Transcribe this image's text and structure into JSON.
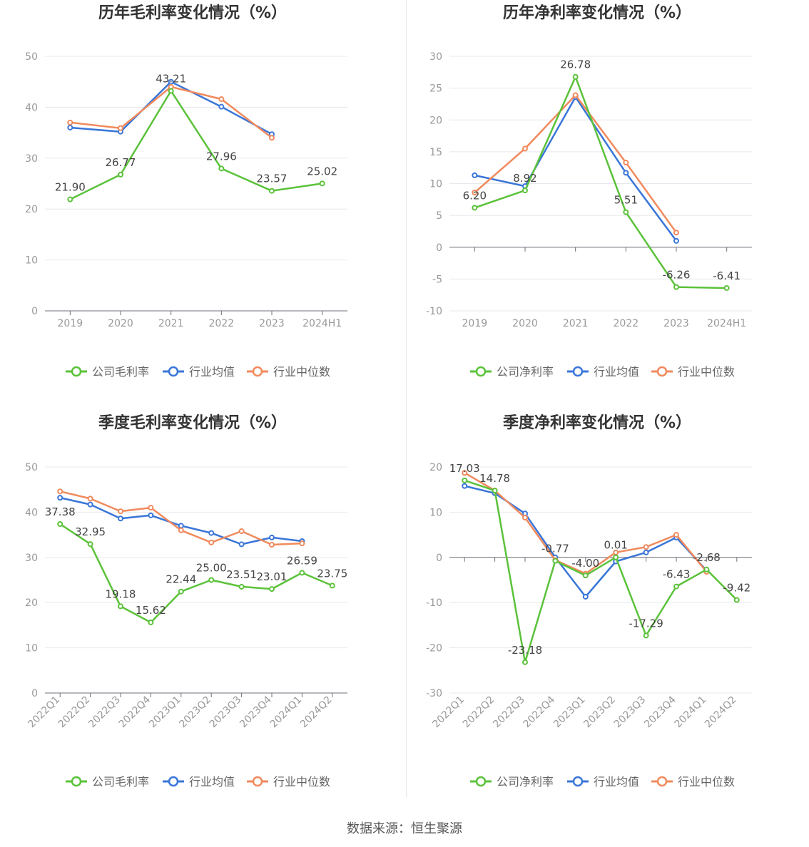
{
  "colors": {
    "company": "#5bc23a",
    "industry_avg": "#3a76d8",
    "industry_median": "#f08a5d",
    "grid": "#e6e8ee",
    "axis": "#6e7079",
    "tick_text": "#999999",
    "title": "#333333",
    "label": "#444444"
  },
  "legend_series": {
    "industry_avg": "行业均值",
    "industry_median": "行业中位数"
  },
  "source": "数据来源：恒生聚源",
  "chart_data": [
    {
      "type": "line",
      "title": "历年毛利率变化情况（%）",
      "categories": [
        "2019",
        "2020",
        "2021",
        "2022",
        "2023",
        "2024H1"
      ],
      "ylim": [
        0,
        50
      ],
      "yticks": [
        0,
        10,
        20,
        30,
        40,
        50
      ],
      "rotate_x_labels": false,
      "series": [
        {
          "key": "company",
          "name": "公司毛利率",
          "values": [
            21.9,
            26.77,
            43.21,
            27.96,
            23.57,
            25.02
          ],
          "labels": [
            "21.90",
            "26.77",
            "43.21",
            "27.96",
            "23.57",
            "25.02"
          ]
        },
        {
          "key": "industry_avg",
          "name": "行业均值",
          "values": [
            36.0,
            35.2,
            45.0,
            40.1,
            34.7,
            null
          ]
        },
        {
          "key": "industry_median",
          "name": "行业中位数",
          "values": [
            37.0,
            35.9,
            44.0,
            41.6,
            34.0,
            null
          ]
        }
      ]
    },
    {
      "type": "line",
      "title": "历年净利率变化情况（%）",
      "categories": [
        "2019",
        "2020",
        "2021",
        "2022",
        "2023",
        "2024H1"
      ],
      "ylim": [
        -10,
        30
      ],
      "yticks": [
        -10,
        -5,
        0,
        5,
        10,
        15,
        20,
        25,
        30
      ],
      "rotate_x_labels": false,
      "series": [
        {
          "key": "company",
          "name": "公司净利率",
          "values": [
            6.2,
            8.92,
            26.78,
            5.51,
            -6.26,
            -6.41
          ],
          "labels": [
            "6.20",
            "8.92",
            "26.78",
            "5.51",
            "-6.26",
            "-6.41"
          ]
        },
        {
          "key": "industry_avg",
          "name": "行业均值",
          "values": [
            11.3,
            9.6,
            23.6,
            11.7,
            1.0,
            null
          ]
        },
        {
          "key": "industry_median",
          "name": "行业中位数",
          "values": [
            8.6,
            15.5,
            23.9,
            13.3,
            2.3,
            null
          ]
        }
      ]
    },
    {
      "type": "line",
      "title": "季度毛利率变化情况（%）",
      "categories": [
        "2022Q1",
        "2022Q2",
        "2022Q3",
        "2022Q4",
        "2023Q1",
        "2023Q2",
        "2023Q3",
        "2023Q4",
        "2024Q1",
        "2024Q2"
      ],
      "ylim": [
        0,
        50
      ],
      "yticks": [
        0,
        10,
        20,
        30,
        40,
        50
      ],
      "rotate_x_labels": true,
      "series": [
        {
          "key": "company",
          "name": "公司毛利率",
          "values": [
            37.38,
            32.95,
            19.18,
            15.62,
            22.44,
            25.0,
            23.51,
            23.01,
            26.59,
            23.75
          ],
          "labels": [
            "37.38",
            "32.95",
            "19.18",
            "15.62",
            "22.44",
            "25.00",
            "23.51",
            "23.01",
            "26.59",
            "23.75"
          ]
        },
        {
          "key": "industry_avg",
          "name": "行业均值",
          "values": [
            43.2,
            41.7,
            38.6,
            39.3,
            37.0,
            35.4,
            32.9,
            34.4,
            33.6,
            null
          ]
        },
        {
          "key": "industry_median",
          "name": "行业中位数",
          "values": [
            44.6,
            43.0,
            40.2,
            41.0,
            36.0,
            33.3,
            35.8,
            32.8,
            33.1,
            null
          ]
        }
      ]
    },
    {
      "type": "line",
      "title": "季度净利率变化情况（%）",
      "categories": [
        "2022Q1",
        "2022Q2",
        "2022Q3",
        "2022Q4",
        "2023Q1",
        "2023Q2",
        "2023Q3",
        "2023Q4",
        "2024Q1",
        "2024Q2"
      ],
      "ylim": [
        -30,
        20
      ],
      "yticks": [
        -30,
        -20,
        -10,
        0,
        10,
        20
      ],
      "rotate_x_labels": true,
      "series": [
        {
          "key": "company",
          "name": "公司净利率",
          "values": [
            17.03,
            14.78,
            -23.18,
            -0.77,
            -4.0,
            0.01,
            -17.29,
            -6.43,
            -2.68,
            -9.42
          ],
          "labels": [
            "17.03",
            "14.78",
            "-23.18",
            "-0.77",
            "-4.00",
            "0.01",
            "-17.29",
            "-6.43",
            "-2.68",
            "-9.42"
          ]
        },
        {
          "key": "industry_avg",
          "name": "行业均值",
          "values": [
            15.8,
            14.2,
            9.7,
            0.0,
            -8.7,
            -0.9,
            1.1,
            4.4,
            -2.9,
            null
          ]
        },
        {
          "key": "industry_median",
          "name": "行业中位数",
          "values": [
            18.7,
            14.8,
            8.8,
            -0.6,
            -3.6,
            1.1,
            2.3,
            5.0,
            -3.2,
            null
          ]
        }
      ]
    }
  ]
}
